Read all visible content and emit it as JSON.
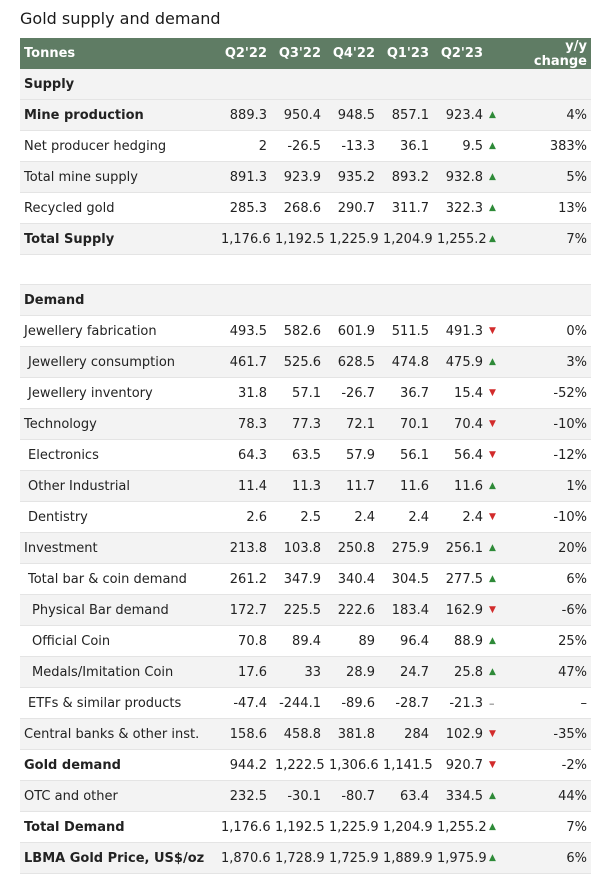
{
  "title": "Gold supply and demand",
  "header": {
    "label": "Tonnes",
    "periods": [
      "Q2'22",
      "Q3'22",
      "Q4'22",
      "Q1'23",
      "Q2'23"
    ],
    "change": "y/y change"
  },
  "rows": [
    {
      "type": "section",
      "label": "Supply",
      "shaded": true
    },
    {
      "label": "Mine production",
      "bold": true,
      "indent": 0,
      "shaded": true,
      "values": [
        "889.3",
        "950.4",
        "948.5",
        "857.1",
        "923.4"
      ],
      "trend": "up",
      "change": "4%"
    },
    {
      "label": "Net producer hedging",
      "indent": 0,
      "values": [
        "2",
        "-26.5",
        "-13.3",
        "36.1",
        "9.5"
      ],
      "trend": "up",
      "change": "383%"
    },
    {
      "label": "Total mine supply",
      "indent": 0,
      "shaded": true,
      "values": [
        "891.3",
        "923.9",
        "935.2",
        "893.2",
        "932.8"
      ],
      "trend": "up",
      "change": "5%"
    },
    {
      "label": "Recycled gold",
      "indent": 0,
      "values": [
        "285.3",
        "268.6",
        "290.7",
        "311.7",
        "322.3"
      ],
      "trend": "up",
      "change": "13%"
    },
    {
      "label": "Total Supply",
      "bold": true,
      "indent": 0,
      "shaded": true,
      "values": [
        "1,176.6",
        "1,192.5",
        "1,225.9",
        "1,204.9",
        "1,255.2"
      ],
      "trend": "up",
      "change": "7%"
    },
    {
      "type": "spacer"
    },
    {
      "type": "section",
      "label": "Demand",
      "shaded": true
    },
    {
      "label": "Jewellery fabrication",
      "indent": 0,
      "values": [
        "493.5",
        "582.6",
        "601.9",
        "511.5",
        "491.3"
      ],
      "trend": "down",
      "change": "0%"
    },
    {
      "label": "Jewellery consumption",
      "indent": 1,
      "shaded": true,
      "values": [
        "461.7",
        "525.6",
        "628.5",
        "474.8",
        "475.9"
      ],
      "trend": "up",
      "change": "3%"
    },
    {
      "label": "Jewellery inventory",
      "indent": 1,
      "values": [
        "31.8",
        "57.1",
        "-26.7",
        "36.7",
        "15.4"
      ],
      "trend": "down",
      "change": "-52%"
    },
    {
      "label": "Technology",
      "indent": 0,
      "shaded": true,
      "values": [
        "78.3",
        "77.3",
        "72.1",
        "70.1",
        "70.4"
      ],
      "trend": "down",
      "change": "-10%"
    },
    {
      "label": "Electronics",
      "indent": 1,
      "values": [
        "64.3",
        "63.5",
        "57.9",
        "56.1",
        "56.4"
      ],
      "trend": "down",
      "change": "-12%"
    },
    {
      "label": "Other Industrial",
      "indent": 1,
      "shaded": true,
      "values": [
        "11.4",
        "11.3",
        "11.7",
        "11.6",
        "11.6"
      ],
      "trend": "up",
      "change": "1%"
    },
    {
      "label": "Dentistry",
      "indent": 1,
      "values": [
        "2.6",
        "2.5",
        "2.4",
        "2.4",
        "2.4"
      ],
      "trend": "down",
      "change": "-10%"
    },
    {
      "label": "Investment",
      "indent": 0,
      "shaded": true,
      "values": [
        "213.8",
        "103.8",
        "250.8",
        "275.9",
        "256.1"
      ],
      "trend": "up",
      "change": "20%"
    },
    {
      "label": "Total bar & coin demand",
      "indent": 1,
      "values": [
        "261.2",
        "347.9",
        "340.4",
        "304.5",
        "277.5"
      ],
      "trend": "up",
      "change": "6%"
    },
    {
      "label": "Physical Bar demand",
      "indent": 2,
      "shaded": true,
      "values": [
        "172.7",
        "225.5",
        "222.6",
        "183.4",
        "162.9"
      ],
      "trend": "down",
      "change": "-6%"
    },
    {
      "label": "Official Coin",
      "indent": 2,
      "values": [
        "70.8",
        "89.4",
        "89",
        "96.4",
        "88.9"
      ],
      "trend": "up",
      "change": "25%"
    },
    {
      "label": "Medals/Imitation Coin",
      "indent": 2,
      "shaded": true,
      "values": [
        "17.6",
        "33",
        "28.9",
        "24.7",
        "25.8"
      ],
      "trend": "up",
      "change": "47%"
    },
    {
      "label": "ETFs & similar products",
      "indent": 1,
      "values": [
        "-47.4",
        "-244.1",
        "-89.6",
        "-28.7",
        "-21.3"
      ],
      "trend": "flat",
      "change": "–"
    },
    {
      "label": "Central banks & other inst.",
      "indent": 0,
      "shaded": true,
      "values": [
        "158.6",
        "458.8",
        "381.8",
        "284",
        "102.9"
      ],
      "trend": "down",
      "change": "-35%"
    },
    {
      "label": "Gold demand",
      "bold": true,
      "indent": 0,
      "values": [
        "944.2",
        "1,222.5",
        "1,306.6",
        "1,141.5",
        "920.7"
      ],
      "trend": "down",
      "change": "-2%"
    },
    {
      "label": "OTC and other",
      "indent": 0,
      "shaded": true,
      "values": [
        "232.5",
        "-30.1",
        "-80.7",
        "63.4",
        "334.5"
      ],
      "trend": "up",
      "change": "44%"
    },
    {
      "label": "Total Demand",
      "bold": true,
      "indent": 0,
      "values": [
        "1,176.6",
        "1,192.5",
        "1,225.9",
        "1,204.9",
        "1,255.2"
      ],
      "trend": "up",
      "change": "7%"
    },
    {
      "label": "LBMA Gold Price, US$/oz",
      "bold": true,
      "indent": 0,
      "shaded": true,
      "values": [
        "1,870.6",
        "1,728.9",
        "1,725.9",
        "1,889.9",
        "1,975.9"
      ],
      "trend": "up",
      "change": "6%"
    }
  ],
  "trend_glyphs": {
    "up": "▲",
    "down": "▼",
    "flat": "–"
  }
}
